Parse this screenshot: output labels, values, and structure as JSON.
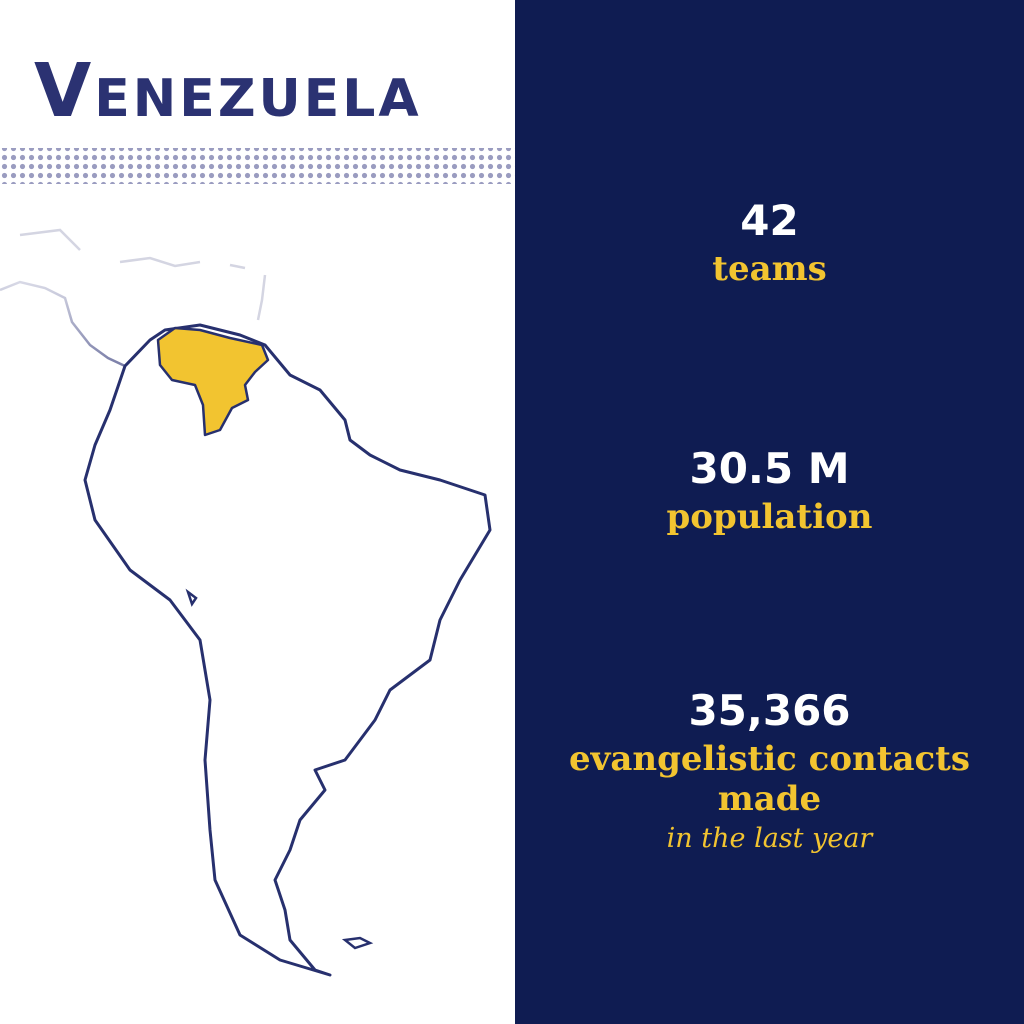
{
  "title": "Venezuela",
  "stats": [
    {
      "value": "42",
      "label": "teams"
    },
    {
      "value": "30.5 M",
      "label": "population"
    },
    {
      "value": "35,366",
      "label": "evangelistic contacts made",
      "note": "in the last year"
    }
  ]
}
